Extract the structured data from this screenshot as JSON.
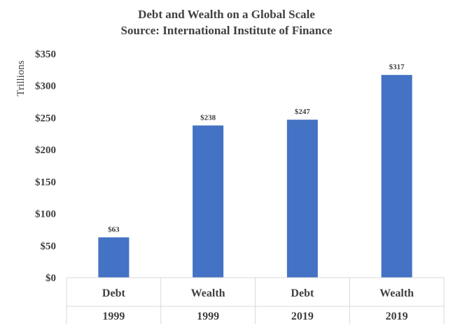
{
  "chart_data": {
    "type": "bar",
    "title": "Debt and Wealth on a Global Scale",
    "subtitle": "Source: International  Institute of Finance",
    "ylabel": "Trillions",
    "xlabel": "",
    "categories": [
      {
        "label": "Debt",
        "group": "1999"
      },
      {
        "label": "Wealth",
        "group": "1999"
      },
      {
        "label": "Debt",
        "group": "2019"
      },
      {
        "label": "Wealth",
        "group": "2019"
      }
    ],
    "values": [
      63,
      238,
      247,
      317
    ],
    "data_labels": [
      "$63",
      "$238",
      "$247",
      "$317"
    ],
    "ylim": [
      0,
      350
    ],
    "yticks": [
      0,
      50,
      100,
      150,
      200,
      250,
      300,
      350
    ],
    "ytick_labels": [
      "$0",
      "$50",
      "$100",
      "$150",
      "$200",
      "$250",
      "$300",
      "$350"
    ],
    "bar_color": "#4472C4",
    "grid": false,
    "legend": "none"
  }
}
